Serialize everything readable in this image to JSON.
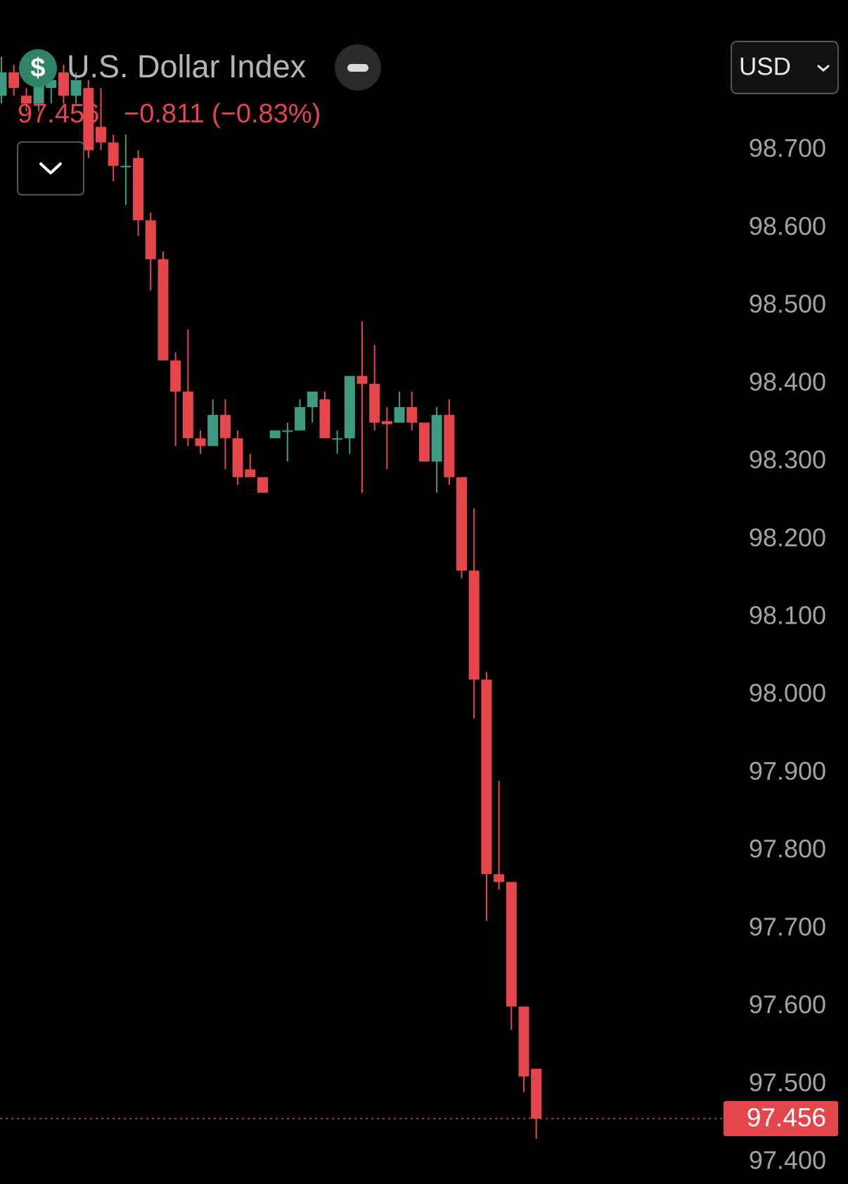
{
  "chart_data": {
    "type": "candlestick",
    "title": "U.S. Dollar Index",
    "icon": "$",
    "change_label": "−0.811 (−0.83%)",
    "currency": "USD",
    "last": 97.456,
    "up_color": "#3e9b82",
    "down_color": "#e5464c",
    "open": [
      98.77,
      98.8,
      98.77,
      98.76,
      98.78,
      98.8,
      98.77,
      98.78,
      98.73,
      98.71,
      98.68,
      98.69,
      98.61,
      98.56,
      98.43,
      98.39,
      98.33,
      98.32,
      98.36,
      98.33,
      98.29,
      98.28,
      98.33,
      98.34,
      98.34,
      98.37,
      98.38,
      98.33,
      98.33,
      98.41,
      98.4,
      98.352,
      98.35,
      98.37,
      98.35,
      98.3,
      98.36,
      98.28,
      98.16,
      98.02,
      97.77,
      97.76,
      97.6,
      97.52
    ],
    "high": [
      98.82,
      98.81,
      98.78,
      98.8,
      98.81,
      98.81,
      98.8,
      98.79,
      98.78,
      98.72,
      98.72,
      98.7,
      98.62,
      98.57,
      98.44,
      98.47,
      98.34,
      98.38,
      98.38,
      98.34,
      98.31,
      98.28,
      98.34,
      98.35,
      98.38,
      98.39,
      98.39,
      98.34,
      98.41,
      98.48,
      98.45,
      98.37,
      98.39,
      98.39,
      98.35,
      98.37,
      98.38,
      98.28,
      98.24,
      98.03,
      97.89,
      97.76,
      97.6,
      97.52
    ],
    "low": [
      98.76,
      98.77,
      98.75,
      98.75,
      98.76,
      98.76,
      98.76,
      98.69,
      98.7,
      98.66,
      98.63,
      98.59,
      98.52,
      98.43,
      98.32,
      98.32,
      98.31,
      98.32,
      98.29,
      98.27,
      98.28,
      98.26,
      98.33,
      98.3,
      98.34,
      98.35,
      98.33,
      98.31,
      98.31,
      98.26,
      98.34,
      98.29,
      98.35,
      98.34,
      98.3,
      98.26,
      98.27,
      98.15,
      97.97,
      97.71,
      97.75,
      97.57,
      97.49,
      97.43
    ],
    "close": [
      98.8,
      98.78,
      98.76,
      98.79,
      98.79,
      98.77,
      98.79,
      98.7,
      98.71,
      98.68,
      98.68,
      98.61,
      98.56,
      98.43,
      98.39,
      98.33,
      98.32,
      98.36,
      98.33,
      98.28,
      98.28,
      98.26,
      98.34,
      98.34,
      98.37,
      98.39,
      98.33,
      98.33,
      98.41,
      98.4,
      98.35,
      98.348,
      98.37,
      98.35,
      98.3,
      98.36,
      98.28,
      98.16,
      98.02,
      97.77,
      97.76,
      97.6,
      97.51,
      97.456
    ],
    "ylim": [
      97.372,
      98.893
    ],
    "yticks": [
      {
        "value": 98.7,
        "label": "98.700"
      },
      {
        "value": 98.6,
        "label": "98.600"
      },
      {
        "value": 98.5,
        "label": "98.500"
      },
      {
        "value": 98.4,
        "label": "98.400"
      },
      {
        "value": 98.3,
        "label": "98.300"
      },
      {
        "value": 98.2,
        "label": "98.200"
      },
      {
        "value": 98.1,
        "label": "98.100"
      },
      {
        "value": 98.0,
        "label": "98.000"
      },
      {
        "value": 97.9,
        "label": "97.900"
      },
      {
        "value": 97.8,
        "label": "97.800"
      },
      {
        "value": 97.7,
        "label": "97.700"
      },
      {
        "value": 97.6,
        "label": "97.600"
      },
      {
        "value": 97.5,
        "label": "97.500"
      },
      {
        "value": 97.4,
        "label": "97.400"
      }
    ]
  }
}
